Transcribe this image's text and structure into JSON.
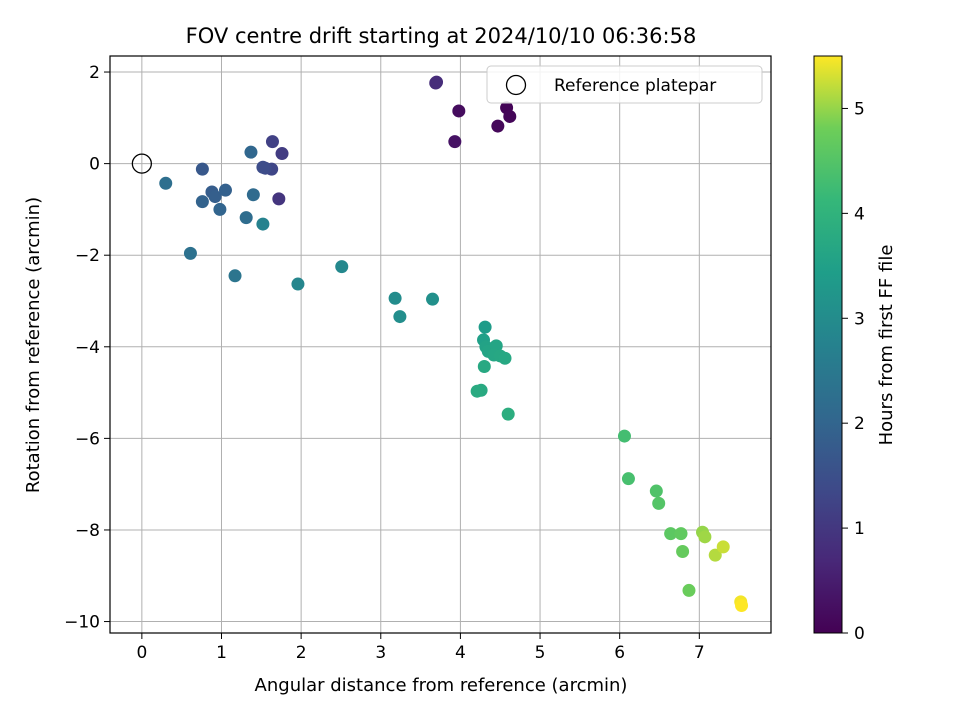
{
  "chart_data": {
    "type": "scatter",
    "title": "FOV centre drift starting at 2024/10/10 06:36:58",
    "xlabel": "Angular distance from reference (arcmin)",
    "ylabel": "Rotation from reference (arcmin)",
    "xlim": [
      -0.4,
      7.9
    ],
    "ylim": [
      -10.25,
      2.35
    ],
    "xticks": [
      0,
      1,
      2,
      3,
      4,
      5,
      6,
      7
    ],
    "yticks": [
      -10,
      -8,
      -6,
      -4,
      -2,
      0,
      2
    ],
    "grid": true,
    "legend": {
      "entries": [
        "Reference platepar"
      ],
      "placement": "upper-right"
    },
    "reference_point": {
      "name": "Reference platepar",
      "x": 0,
      "y": 0
    },
    "colorbar": {
      "label": "Hours from first FF file",
      "colormap": "viridis",
      "range": [
        0,
        5.5
      ],
      "ticks": [
        0,
        1,
        2,
        3,
        4,
        5
      ]
    },
    "points": [
      {
        "x": 4.58,
        "y": 1.22,
        "c": 0.05
      },
      {
        "x": 4.62,
        "y": 1.03,
        "c": 0.08
      },
      {
        "x": 4.47,
        "y": 0.82,
        "c": 0.12
      },
      {
        "x": 3.98,
        "y": 1.15,
        "c": 0.2
      },
      {
        "x": 3.93,
        "y": 0.48,
        "c": 0.3
      },
      {
        "x": 3.7,
        "y": 1.78,
        "c": 0.75
      },
      {
        "x": 3.69,
        "y": 1.76,
        "c": 0.78
      },
      {
        "x": 1.72,
        "y": -0.77,
        "c": 0.95
      },
      {
        "x": 1.76,
        "y": 0.22,
        "c": 1.1
      },
      {
        "x": 1.64,
        "y": 0.48,
        "c": 1.2
      },
      {
        "x": 1.63,
        "y": -0.12,
        "c": 1.3
      },
      {
        "x": 1.55,
        "y": -0.1,
        "c": 1.4
      },
      {
        "x": 1.52,
        "y": -0.08,
        "c": 1.45
      },
      {
        "x": 0.76,
        "y": -0.12,
        "c": 1.7
      },
      {
        "x": 0.88,
        "y": -0.62,
        "c": 1.8
      },
      {
        "x": 0.92,
        "y": -0.72,
        "c": 1.85
      },
      {
        "x": 1.05,
        "y": -0.58,
        "c": 1.9
      },
      {
        "x": 0.76,
        "y": -0.83,
        "c": 1.95
      },
      {
        "x": 0.98,
        "y": -1.0,
        "c": 2.0
      },
      {
        "x": 1.37,
        "y": 0.25,
        "c": 2.05
      },
      {
        "x": 1.4,
        "y": -0.68,
        "c": 2.15
      },
      {
        "x": 1.31,
        "y": -1.18,
        "c": 2.2
      },
      {
        "x": 0.3,
        "y": -0.43,
        "c": 2.25
      },
      {
        "x": 0.61,
        "y": -1.96,
        "c": 2.3
      },
      {
        "x": 1.17,
        "y": -2.45,
        "c": 2.4
      },
      {
        "x": 1.52,
        "y": -1.32,
        "c": 2.75
      },
      {
        "x": 1.96,
        "y": -2.63,
        "c": 2.85
      },
      {
        "x": 2.51,
        "y": -2.25,
        "c": 2.9
      },
      {
        "x": 3.18,
        "y": -2.94,
        "c": 3.0
      },
      {
        "x": 3.24,
        "y": -3.34,
        "c": 3.05
      },
      {
        "x": 3.65,
        "y": -2.96,
        "c": 3.1
      },
      {
        "x": 4.31,
        "y": -3.57,
        "c": 3.4
      },
      {
        "x": 4.29,
        "y": -3.85,
        "c": 3.5
      },
      {
        "x": 4.32,
        "y": -4.0,
        "c": 3.55
      },
      {
        "x": 4.35,
        "y": -4.1,
        "c": 3.6
      },
      {
        "x": 4.45,
        "y": -3.98,
        "c": 3.62
      },
      {
        "x": 4.42,
        "y": -4.18,
        "c": 3.65
      },
      {
        "x": 4.5,
        "y": -4.2,
        "c": 3.68
      },
      {
        "x": 4.56,
        "y": -4.25,
        "c": 3.7
      },
      {
        "x": 4.3,
        "y": -4.43,
        "c": 3.72
      },
      {
        "x": 4.26,
        "y": -4.95,
        "c": 3.75
      },
      {
        "x": 4.21,
        "y": -4.97,
        "c": 3.78
      },
      {
        "x": 4.6,
        "y": -5.47,
        "c": 3.85
      },
      {
        "x": 6.06,
        "y": -5.95,
        "c": 4.3
      },
      {
        "x": 6.11,
        "y": -6.88,
        "c": 4.35
      },
      {
        "x": 6.46,
        "y": -7.15,
        "c": 4.45
      },
      {
        "x": 6.49,
        "y": -7.42,
        "c": 4.5
      },
      {
        "x": 6.64,
        "y": -8.08,
        "c": 4.6
      },
      {
        "x": 6.77,
        "y": -8.08,
        "c": 4.65
      },
      {
        "x": 6.79,
        "y": -8.47,
        "c": 4.7
      },
      {
        "x": 6.87,
        "y": -9.32,
        "c": 4.75
      },
      {
        "x": 7.04,
        "y": -8.05,
        "c": 5.0
      },
      {
        "x": 7.07,
        "y": -8.15,
        "c": 5.05
      },
      {
        "x": 7.2,
        "y": -8.55,
        "c": 5.15
      },
      {
        "x": 7.3,
        "y": -8.37,
        "c": 5.25
      },
      {
        "x": 7.52,
        "y": -9.57,
        "c": 5.45
      },
      {
        "x": 7.53,
        "y": -9.65,
        "c": 5.5
      }
    ]
  }
}
